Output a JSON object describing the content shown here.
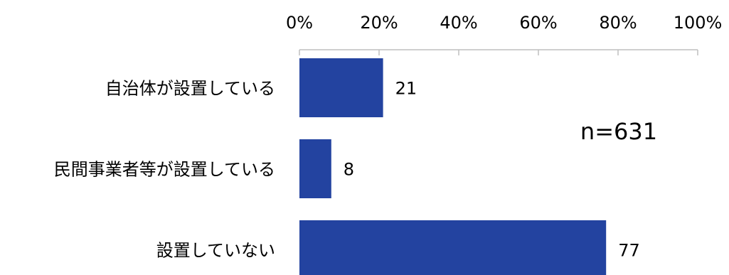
{
  "chart_data": {
    "type": "bar",
    "orientation": "horizontal",
    "categories": [
      "自治体が設置している",
      "民間事業者等が設置している",
      "設置していない"
    ],
    "values": [
      21,
      8,
      77
    ],
    "xlim": [
      0,
      100
    ],
    "ticks": [
      0,
      20,
      40,
      60,
      80,
      100
    ],
    "tick_labels": [
      "0%",
      "20%",
      "40%",
      "60%",
      "80%",
      "100%"
    ],
    "axis_position": "top",
    "grid": false,
    "legend": "none",
    "annotation": "n=631",
    "colors": {
      "bar": "#2343A0",
      "axis": "#BFBFBF"
    }
  }
}
